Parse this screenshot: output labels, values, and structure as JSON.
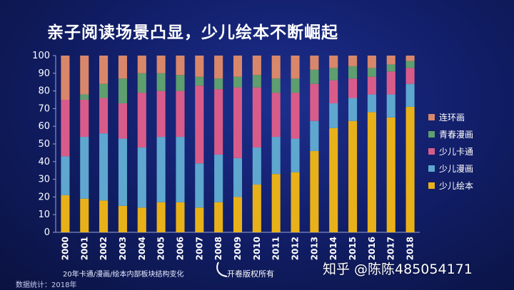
{
  "title": "亲子阅读场景凸显，少儿绘本不断崛起",
  "caption": "20年卡通/漫画/绘本内部板块结构变化",
  "source": "数据统计：2018年",
  "brand": "开卷版权所有",
  "watermark": "知乎 @陈陈485054171",
  "colors": {
    "少儿绘本": "#e8b11a",
    "少儿漫画": "#5fa7cf",
    "少儿卡通": "#d85c8a",
    "青春漫画": "#5f9e6e",
    "连环画": "#d9876a"
  },
  "chart_data": {
    "type": "bar",
    "stacked": true,
    "categories": [
      "2000",
      "2001",
      "2002",
      "2003",
      "2004",
      "2005",
      "2006",
      "2007",
      "2008",
      "2009",
      "2010",
      "2011",
      "2012",
      "2013",
      "2014",
      "2015",
      "2016",
      "2017",
      "2018"
    ],
    "ylim": [
      0,
      100
    ],
    "yticks": [
      0,
      10,
      20,
      30,
      40,
      50,
      60,
      70,
      80,
      90,
      100
    ],
    "grid": false,
    "legend_position": "right",
    "series": [
      {
        "name": "少儿绘本",
        "values": [
          21,
          19,
          18,
          15,
          14,
          17,
          17,
          14,
          17,
          20,
          27,
          33,
          34,
          46,
          59,
          63,
          68,
          65,
          71
        ]
      },
      {
        "name": "少儿漫画",
        "values": [
          22,
          35,
          38,
          38,
          34,
          37,
          37,
          25,
          27,
          22,
          21,
          21,
          19,
          17,
          14,
          13,
          10,
          13,
          13
        ]
      },
      {
        "name": "少儿卡通",
        "values": [
          32,
          21,
          20,
          20,
          31,
          26,
          26,
          44,
          37,
          40,
          34,
          25,
          26,
          21,
          13,
          11,
          10,
          13,
          9
        ]
      },
      {
        "name": "青春漫画",
        "values": [
          0,
          3,
          8,
          14,
          11,
          10,
          9,
          5,
          6,
          6,
          7,
          8,
          8,
          8,
          7,
          7,
          5,
          4,
          4
        ]
      },
      {
        "name": "连环画",
        "values": [
          25,
          22,
          16,
          13,
          10,
          10,
          11,
          12,
          13,
          12,
          11,
          13,
          13,
          8,
          7,
          6,
          7,
          5,
          3
        ]
      }
    ],
    "legend_order": [
      "连环画",
      "青春漫画",
      "少儿卡通",
      "少儿漫画",
      "少儿绘本"
    ]
  }
}
